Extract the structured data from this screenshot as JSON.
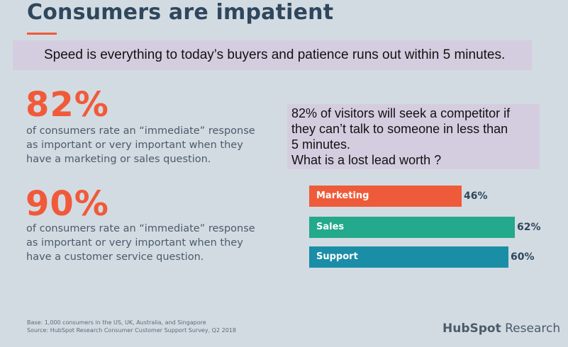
{
  "title": "Consumers are impatient",
  "callout_top": "Speed is everything to today’s buyers and patience runs out within 5 minutes.",
  "callout_right": "82% of visitors will seek a competitor if\nthey can’t talk to someone in less than\n5 minutes.\nWhat is a lost lead worth ?",
  "stats": [
    {
      "value": "82%",
      "desc_lines": [
        "of consumers rate an “immediate” response",
        "as important or very important when they",
        "have a marketing or sales question."
      ]
    },
    {
      "value": "90%",
      "desc_lines": [
        "of consumers rate an “immediate” response",
        "as important or very important when they",
        "have a customer service question."
      ]
    }
  ],
  "chart_data": {
    "type": "bar",
    "orientation": "horizontal",
    "categories": [
      "Marketing",
      "Sales",
      "Support"
    ],
    "values": [
      46,
      62,
      60
    ],
    "value_labels": [
      "46%",
      "62%",
      "60%"
    ],
    "colors": [
      "#ee5b3a",
      "#23a98b",
      "#1a8ea6"
    ],
    "xlim": [
      0,
      100
    ]
  },
  "footnote": {
    "base": "Base: 1,000 consumers in the US, UK, Australia, and Singapore",
    "source": "Source: HubSpot Research Consumer Customer Support Survey, Q2 2018"
  },
  "brand": {
    "name": "HubSpot",
    "suffix": " Research"
  }
}
